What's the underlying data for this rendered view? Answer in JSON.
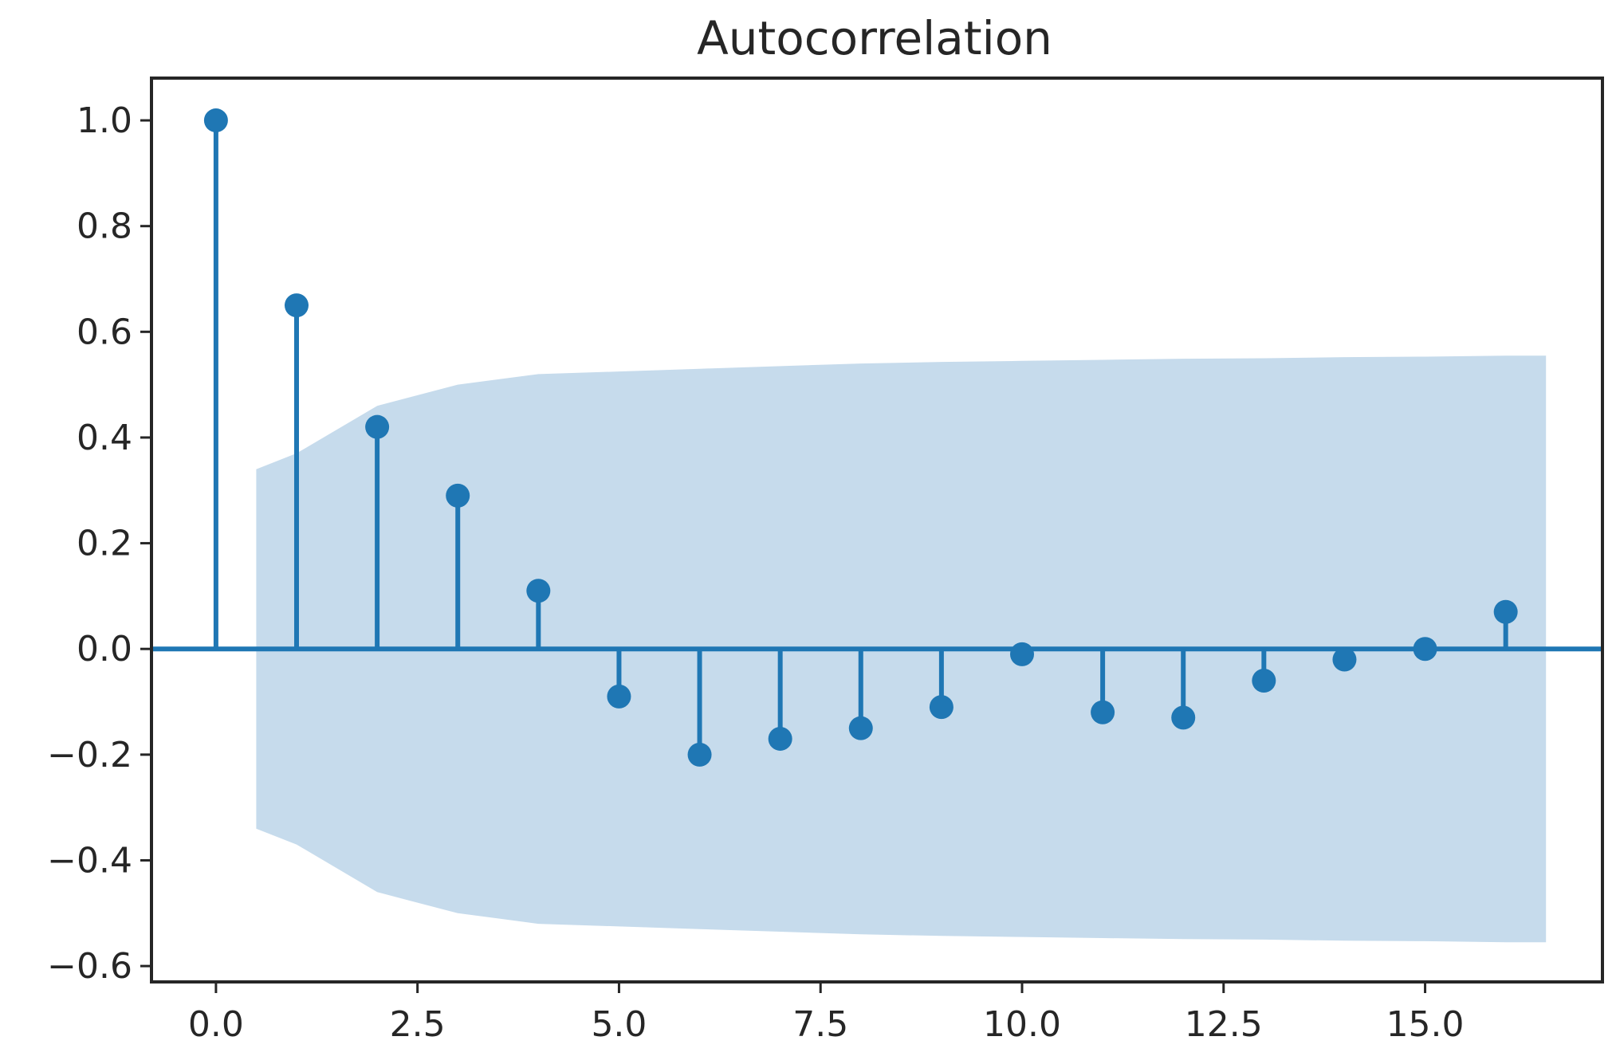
{
  "chart_data": {
    "type": "stem",
    "title": "Autocorrelation",
    "xlabel": "",
    "ylabel": "",
    "xlim": [
      -0.8,
      17.2
    ],
    "ylim": [
      -0.63,
      1.08
    ],
    "x_ticks": [
      0.0,
      2.5,
      5.0,
      7.5,
      10.0,
      12.5,
      15.0
    ],
    "x_tick_labels": [
      "0.0",
      "2.5",
      "5.0",
      "7.5",
      "10.0",
      "12.5",
      "15.0"
    ],
    "y_ticks": [
      1.0,
      0.8,
      0.6,
      0.4,
      0.2,
      0.0,
      -0.2,
      -0.4,
      -0.6
    ],
    "y_tick_labels": [
      "1.0",
      "0.8",
      "0.6",
      "0.4",
      "0.2",
      "0.0",
      "−0.2",
      "−0.4",
      "−0.6"
    ],
    "grid": false,
    "lags": [
      0,
      1,
      2,
      3,
      4,
      5,
      6,
      7,
      8,
      9,
      10,
      11,
      12,
      13,
      14,
      15,
      16
    ],
    "values": [
      1.0,
      0.65,
      0.42,
      0.29,
      0.11,
      -0.09,
      -0.2,
      -0.17,
      -0.15,
      -0.11,
      -0.01,
      -0.12,
      -0.13,
      -0.06,
      -0.02,
      0.0,
      0.07
    ],
    "confidence_band": {
      "x": [
        0.5,
        1,
        2,
        3,
        4,
        5,
        6,
        7,
        8,
        9,
        10,
        11,
        12,
        13,
        14,
        15,
        16,
        16.5
      ],
      "upper": [
        0.34,
        0.37,
        0.46,
        0.5,
        0.52,
        0.525,
        0.53,
        0.535,
        0.54,
        0.543,
        0.545,
        0.547,
        0.549,
        0.55,
        0.552,
        0.553,
        0.555,
        0.555
      ],
      "lower": [
        -0.34,
        -0.37,
        -0.46,
        -0.5,
        -0.52,
        -0.525,
        -0.53,
        -0.535,
        -0.54,
        -0.543,
        -0.545,
        -0.547,
        -0.549,
        -0.55,
        -0.552,
        -0.553,
        -0.555,
        -0.555
      ]
    },
    "colors": {
      "stem": "#1f77b4",
      "marker": "#1f77b4",
      "band": "#c6dbec",
      "baseline": "#1f77b4",
      "axes": "#262626"
    }
  }
}
